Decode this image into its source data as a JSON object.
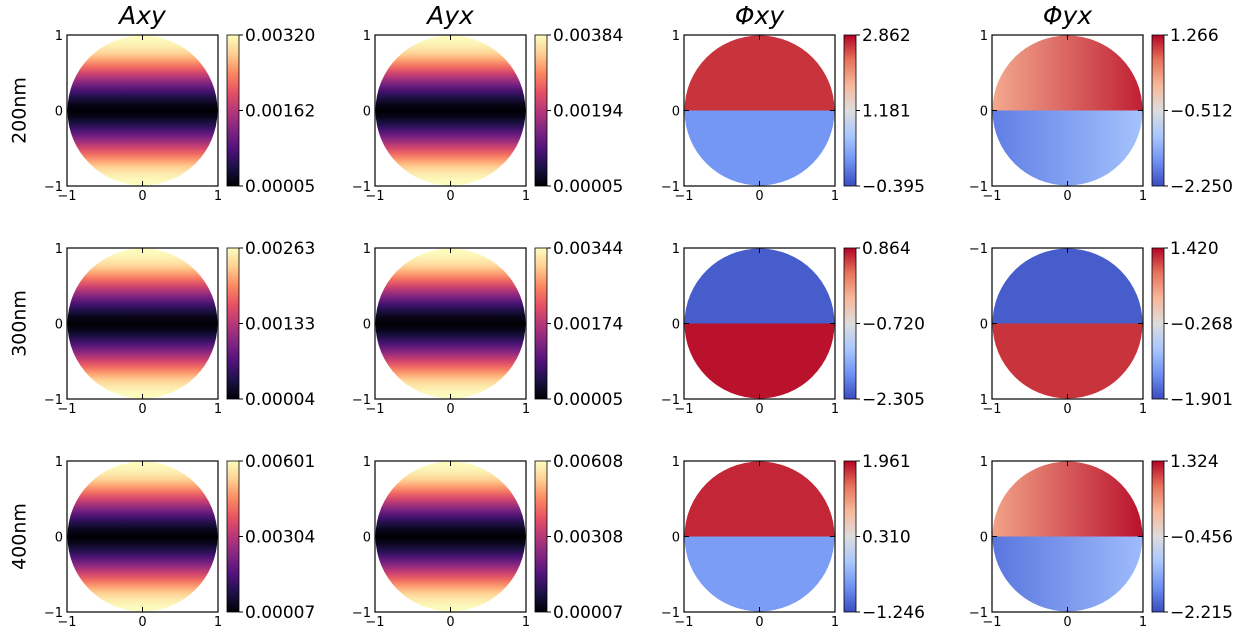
{
  "figure": {
    "column_titles": [
      "Axy",
      "Ayx",
      "Φxy",
      "Φyx"
    ],
    "row_labels": [
      "200nm",
      "300nm",
      "400nm"
    ],
    "colors": {
      "magma": [
        "#000004",
        "#1d1147",
        "#51127c",
        "#822681",
        "#b73779",
        "#e75263",
        "#fc8961",
        "#fecf92",
        "#fcfdbf"
      ],
      "coolwarm": [
        "#3b4cc0",
        "#6f92f3",
        "#aac7fd",
        "#dddddd",
        "#f7b89c",
        "#e7745b",
        "#b40426"
      ]
    }
  },
  "chart_data": [
    {
      "type": "heatmap",
      "title": "Axy",
      "row_label": "200nm",
      "pattern": "amplitude",
      "colormap": "magma",
      "colorbar_ticks": [
        "0.00320",
        "0.00162",
        "0.00005"
      ],
      "x_ticks": [
        "−1",
        "0",
        "1"
      ],
      "y_ticks": [
        "1",
        "0",
        "−1"
      ],
      "xlim": [
        -1,
        1
      ],
      "ylim": [
        -1,
        1
      ]
    },
    {
      "type": "heatmap",
      "title": "Ayx",
      "row_label": "200nm",
      "pattern": "amplitude",
      "colormap": "magma",
      "colorbar_ticks": [
        "0.00384",
        "0.00194",
        "0.00005"
      ],
      "x_ticks": [
        "−1",
        "0",
        "1"
      ],
      "y_ticks": [
        "1",
        "0",
        "−1"
      ],
      "xlim": [
        -1,
        1
      ],
      "ylim": [
        -1,
        1
      ]
    },
    {
      "type": "heatmap",
      "title": "Φxy",
      "row_label": "200nm",
      "pattern": "phase",
      "colormap": "coolwarm",
      "upper_value": 0.93,
      "lower_value": 0.18,
      "colorbar_ticks": [
        "2.862",
        "1.181",
        "−0.395"
      ],
      "x_ticks": [
        "−1",
        "0",
        "1"
      ],
      "y_ticks": [
        "1",
        "0",
        "−1"
      ],
      "xlim": [
        -1,
        1
      ],
      "ylim": [
        -1,
        1
      ]
    },
    {
      "type": "heatmap",
      "title": "Φyx",
      "row_label": "200nm",
      "pattern": "phase",
      "colormap": "coolwarm",
      "upper_value": 0.82,
      "lower_value": 0.24,
      "gradient": true,
      "colorbar_ticks": [
        "1.266",
        "−0.512",
        "−2.250"
      ],
      "x_ticks": [
        "−1",
        "0",
        "1"
      ],
      "y_ticks": [
        "1",
        "0",
        "−1"
      ],
      "xlim": [
        -1,
        1
      ],
      "ylim": [
        -1,
        1
      ]
    },
    {
      "type": "heatmap",
      "title": "Axy",
      "row_label": "300nm",
      "pattern": "amplitude",
      "colormap": "magma",
      "colorbar_ticks": [
        "0.00263",
        "0.00133",
        "0.00004"
      ],
      "x_ticks": [
        "−1",
        "0",
        "1"
      ],
      "y_ticks": [
        "1",
        "0",
        "−1"
      ],
      "xlim": [
        -1,
        1
      ],
      "ylim": [
        -1,
        1
      ]
    },
    {
      "type": "heatmap",
      "title": "Ayx",
      "row_label": "300nm",
      "pattern": "amplitude",
      "colormap": "magma",
      "colorbar_ticks": [
        "0.00344",
        "0.00174",
        "0.00005"
      ],
      "x_ticks": [
        "−1",
        "0",
        "1"
      ],
      "y_ticks": [
        "1",
        "0",
        "−1"
      ],
      "xlim": [
        -1,
        1
      ],
      "ylim": [
        -1,
        1
      ]
    },
    {
      "type": "heatmap",
      "title": "Φxy",
      "row_label": "300nm",
      "pattern": "phase",
      "colormap": "coolwarm",
      "upper_value": 0.04,
      "lower_value": 0.98,
      "colorbar_ticks": [
        "0.864",
        "−0.720",
        "−2.305"
      ],
      "x_ticks": [
        "−1",
        "0",
        "1"
      ],
      "y_ticks": [
        "1",
        "0",
        "−1"
      ],
      "xlim": [
        -1,
        1
      ],
      "ylim": [
        -1,
        1
      ]
    },
    {
      "type": "heatmap",
      "title": "Φyx",
      "row_label": "300nm",
      "pattern": "phase",
      "colormap": "coolwarm",
      "upper_value": 0.04,
      "lower_value": 0.93,
      "colorbar_ticks": [
        "1.420",
        "−0.268",
        "−1.901"
      ],
      "x_ticks": [
        "−1",
        "0",
        "1"
      ],
      "y_ticks": [
        "−1",
        "0",
        "1"
      ],
      "xlim": [
        -1,
        1
      ],
      "ylim": [
        -1,
        1
      ]
    },
    {
      "type": "heatmap",
      "title": "Axy",
      "row_label": "400nm",
      "pattern": "amplitude",
      "colormap": "magma",
      "colorbar_ticks": [
        "0.00601",
        "0.00304",
        "0.00007"
      ],
      "x_ticks": [
        "−1",
        "0",
        "1"
      ],
      "y_ticks": [
        "1",
        "0",
        "−1"
      ],
      "xlim": [
        -1,
        1
      ],
      "ylim": [
        -1,
        1
      ]
    },
    {
      "type": "heatmap",
      "title": "Ayx",
      "row_label": "400nm",
      "pattern": "amplitude",
      "colormap": "magma",
      "colorbar_ticks": [
        "0.00608",
        "0.00308",
        "0.00007"
      ],
      "x_ticks": [
        "−1",
        "0",
        "1"
      ],
      "y_ticks": [
        "1",
        "0",
        "−1"
      ],
      "xlim": [
        -1,
        1
      ],
      "ylim": [
        -1,
        1
      ]
    },
    {
      "type": "heatmap",
      "title": "Φxy",
      "row_label": "400nm",
      "pattern": "phase",
      "colormap": "coolwarm",
      "upper_value": 0.95,
      "lower_value": 0.2,
      "colorbar_ticks": [
        "1.961",
        "0.310",
        "−1.246"
      ],
      "x_ticks": [
        "−1",
        "0",
        "1"
      ],
      "y_ticks": [
        "1",
        "0",
        "−1"
      ],
      "xlim": [
        -1,
        1
      ],
      "ylim": [
        -1,
        1
      ]
    },
    {
      "type": "heatmap",
      "title": "Φyx",
      "row_label": "400nm",
      "pattern": "phase",
      "colormap": "coolwarm",
      "upper_value": 0.84,
      "lower_value": 0.22,
      "gradient": true,
      "colorbar_ticks": [
        "1.324",
        "−0.456",
        "−2.215"
      ],
      "x_ticks": [
        "−1",
        "0",
        "1"
      ],
      "y_ticks": [
        "1",
        "0",
        "−1"
      ],
      "xlim": [
        -1,
        1
      ],
      "ylim": [
        -1,
        1
      ]
    }
  ]
}
